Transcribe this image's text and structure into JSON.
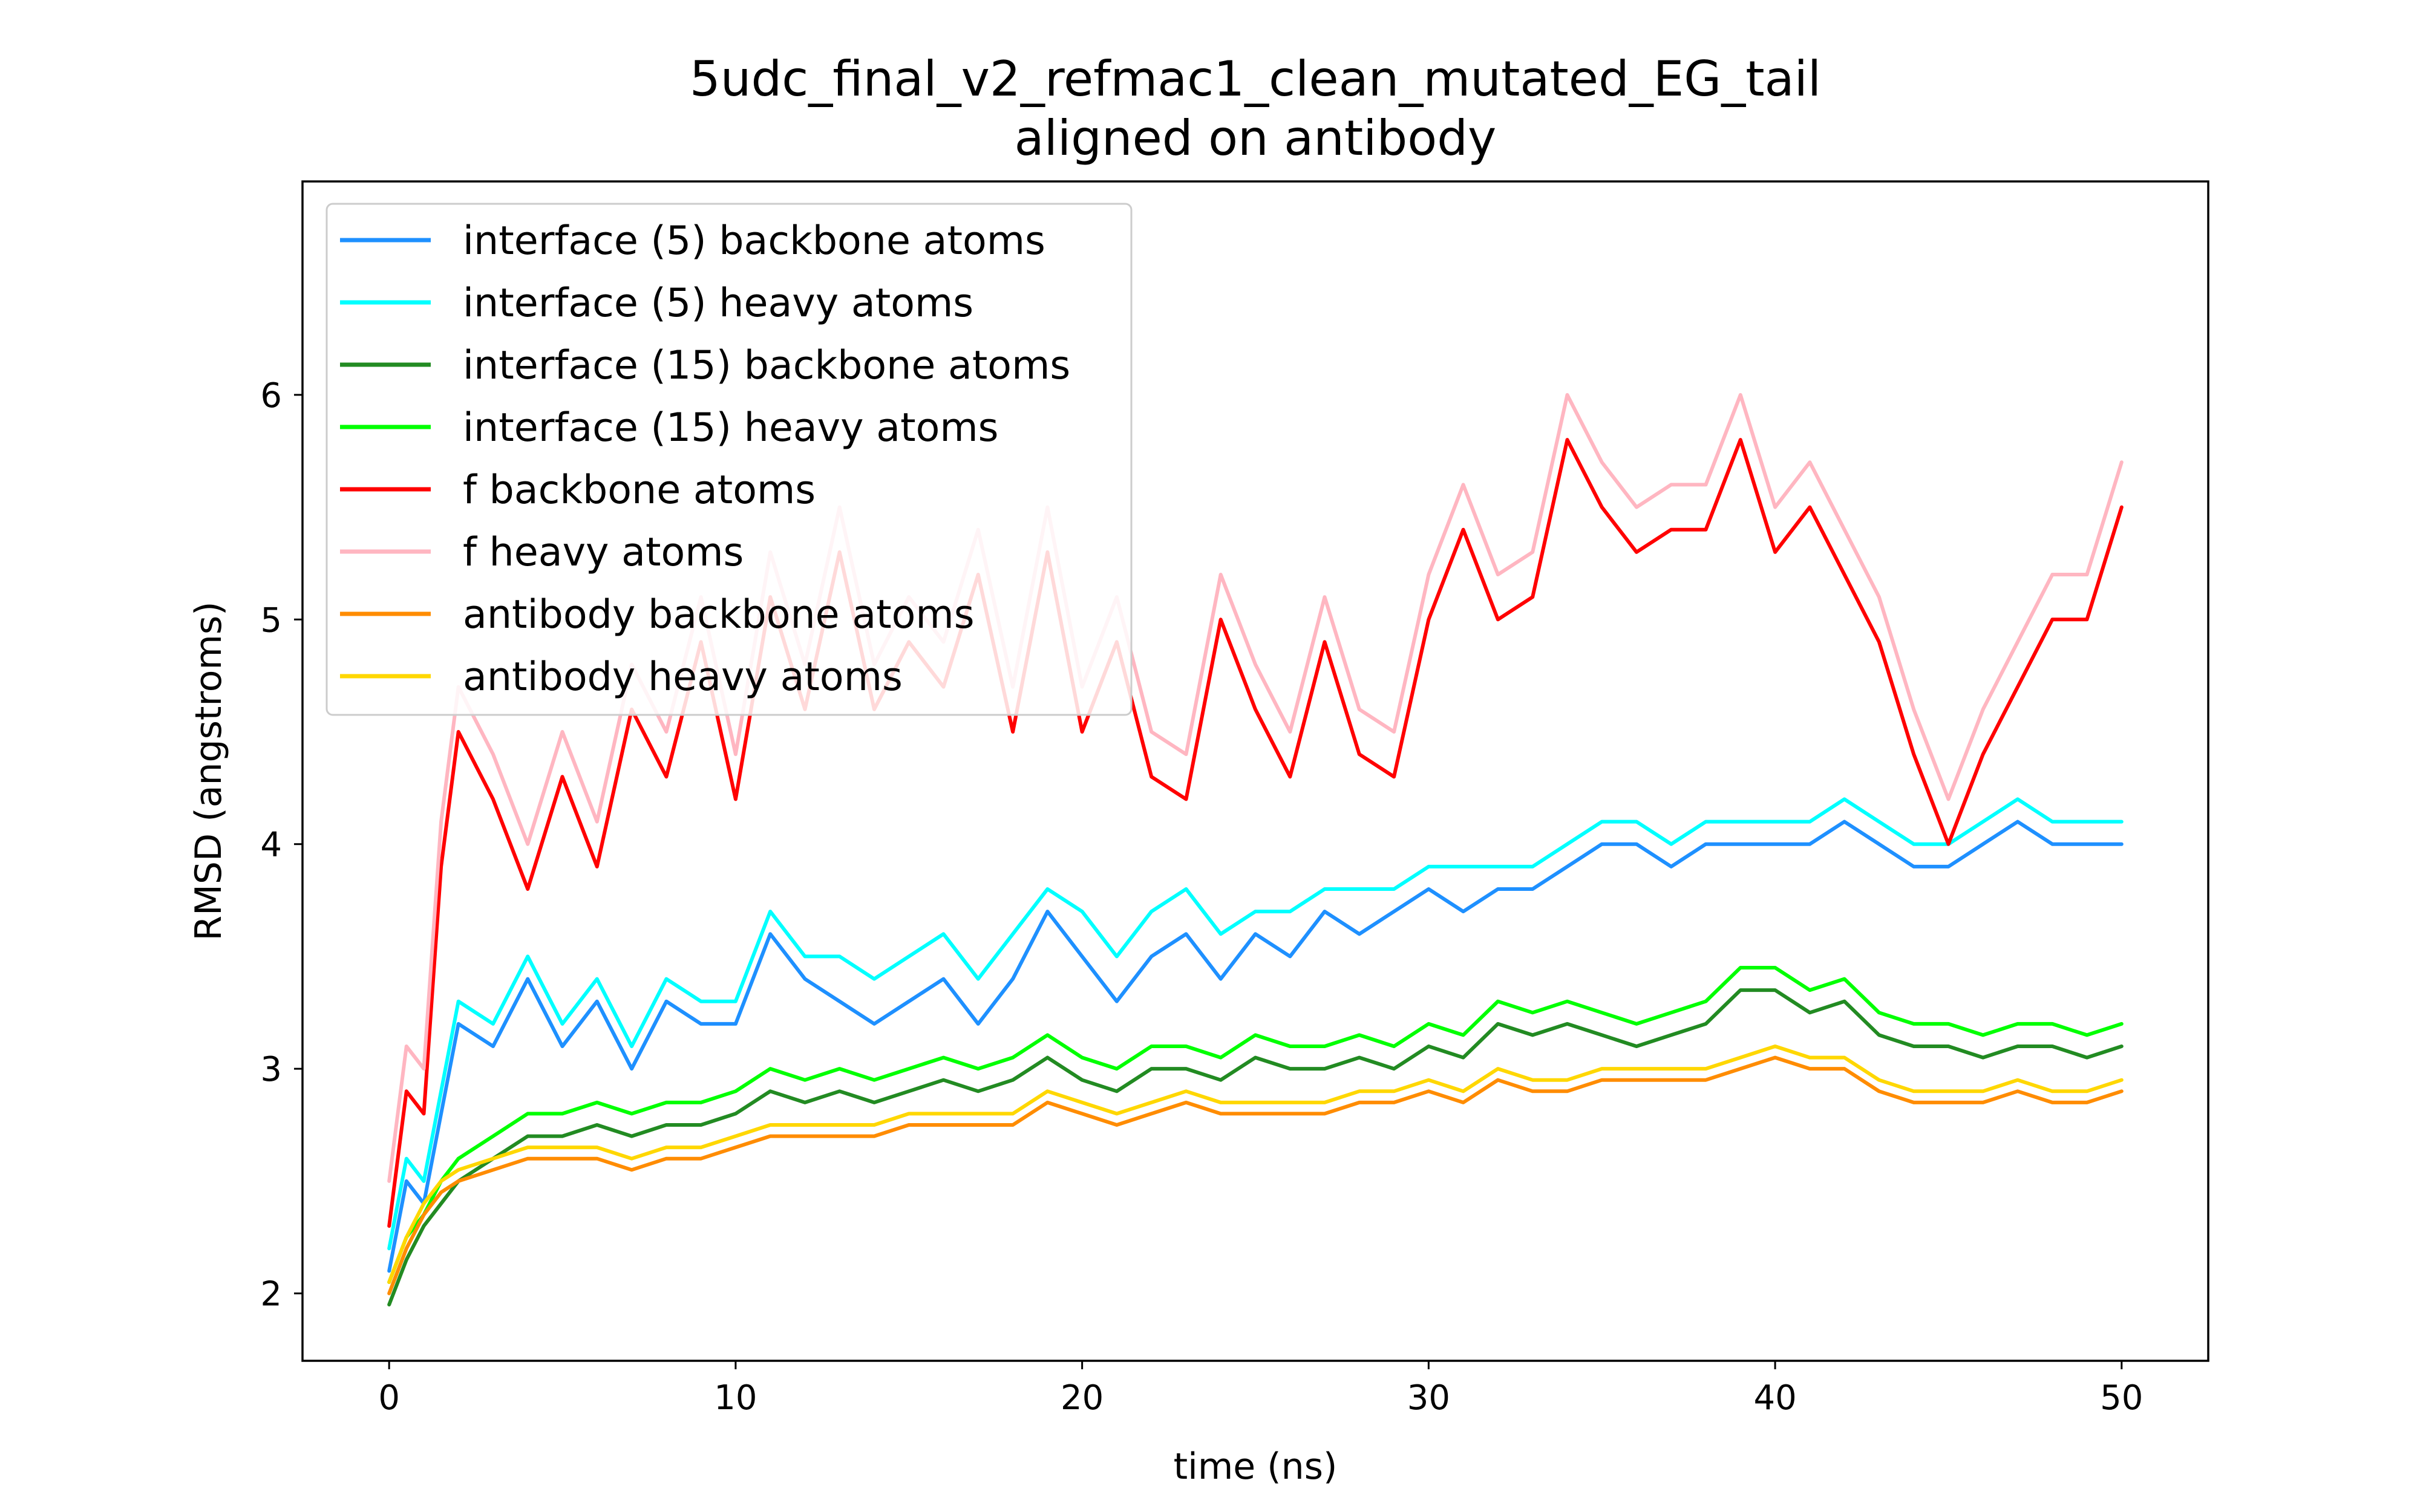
{
  "chart_data": {
    "type": "line",
    "title": "5udc_final_v2_refmac1_clean_mutated_EG_tail",
    "subtitle": "aligned on antibody",
    "xlabel": "time (ns)",
    "ylabel": "RMSD (angstroms)",
    "xlim": [
      -2.5,
      52.5
    ],
    "ylim": [
      1.7,
      6.95
    ],
    "xticks": [
      "0",
      "10",
      "20",
      "30",
      "40",
      "50"
    ],
    "yticks": [
      "2",
      "3",
      "4",
      "5",
      "6"
    ],
    "grid": false,
    "legend_position": "top-left",
    "x": [
      0,
      0.5,
      1,
      1.5,
      2,
      3,
      4,
      5,
      6,
      7,
      8,
      9,
      10,
      11,
      12,
      13,
      14,
      15,
      16,
      17,
      18,
      19,
      20,
      21,
      22,
      23,
      24,
      25,
      26,
      27,
      28,
      29,
      30,
      31,
      32,
      33,
      34,
      35,
      36,
      37,
      38,
      39,
      40,
      41,
      42,
      43,
      44,
      45,
      46,
      47,
      48,
      49,
      50
    ],
    "series": [
      {
        "name": "interface (5) backbone atoms",
        "color": "#1e90ff",
        "values": [
          2.1,
          2.5,
          2.4,
          2.8,
          3.2,
          3.1,
          3.4,
          3.1,
          3.3,
          3.0,
          3.3,
          3.2,
          3.2,
          3.6,
          3.4,
          3.3,
          3.2,
          3.3,
          3.4,
          3.2,
          3.4,
          3.7,
          3.5,
          3.3,
          3.5,
          3.6,
          3.4,
          3.6,
          3.5,
          3.7,
          3.6,
          3.7,
          3.8,
          3.7,
          3.8,
          3.8,
          3.9,
          4.0,
          4.0,
          3.9,
          4.0,
          4.0,
          4.0,
          4.0,
          4.1,
          4.0,
          3.9,
          3.9,
          4.0,
          4.1,
          4.0,
          4.0,
          4.0
        ]
      },
      {
        "name": "interface (5) heavy atoms",
        "color": "#00ffff",
        "values": [
          2.2,
          2.6,
          2.5,
          2.9,
          3.3,
          3.2,
          3.5,
          3.2,
          3.4,
          3.1,
          3.4,
          3.3,
          3.3,
          3.7,
          3.5,
          3.5,
          3.4,
          3.5,
          3.6,
          3.4,
          3.6,
          3.8,
          3.7,
          3.5,
          3.7,
          3.8,
          3.6,
          3.7,
          3.7,
          3.8,
          3.8,
          3.8,
          3.9,
          3.9,
          3.9,
          3.9,
          4.0,
          4.1,
          4.1,
          4.0,
          4.1,
          4.1,
          4.1,
          4.1,
          4.2,
          4.1,
          4.0,
          4.0,
          4.1,
          4.2,
          4.1,
          4.1,
          4.1
        ]
      },
      {
        "name": "interface (15) backbone atoms",
        "color": "#228b22",
        "values": [
          1.95,
          2.15,
          2.3,
          2.4,
          2.5,
          2.6,
          2.7,
          2.7,
          2.75,
          2.7,
          2.75,
          2.75,
          2.8,
          2.9,
          2.85,
          2.9,
          2.85,
          2.9,
          2.95,
          2.9,
          2.95,
          3.05,
          2.95,
          2.9,
          3.0,
          3.0,
          2.95,
          3.05,
          3.0,
          3.0,
          3.05,
          3.0,
          3.1,
          3.05,
          3.2,
          3.15,
          3.2,
          3.15,
          3.1,
          3.15,
          3.2,
          3.35,
          3.35,
          3.25,
          3.3,
          3.15,
          3.1,
          3.1,
          3.05,
          3.1,
          3.1,
          3.05,
          3.1
        ]
      },
      {
        "name": "interface (15) heavy atoms",
        "color": "#00ff00",
        "values": [
          2.05,
          2.25,
          2.35,
          2.5,
          2.6,
          2.7,
          2.8,
          2.8,
          2.85,
          2.8,
          2.85,
          2.85,
          2.9,
          3.0,
          2.95,
          3.0,
          2.95,
          3.0,
          3.05,
          3.0,
          3.05,
          3.15,
          3.05,
          3.0,
          3.1,
          3.1,
          3.05,
          3.15,
          3.1,
          3.1,
          3.15,
          3.1,
          3.2,
          3.15,
          3.3,
          3.25,
          3.3,
          3.25,
          3.2,
          3.25,
          3.3,
          3.45,
          3.45,
          3.35,
          3.4,
          3.25,
          3.2,
          3.2,
          3.15,
          3.2,
          3.2,
          3.15,
          3.2
        ]
      },
      {
        "name": "f backbone atoms",
        "color": "#ff0000",
        "values": [
          2.3,
          2.9,
          2.8,
          3.9,
          4.5,
          4.2,
          3.8,
          4.3,
          3.9,
          4.6,
          4.3,
          4.9,
          4.2,
          5.1,
          4.6,
          5.3,
          4.6,
          4.9,
          4.7,
          5.2,
          4.5,
          5.3,
          4.5,
          4.9,
          4.3,
          4.2,
          5.0,
          4.6,
          4.3,
          4.9,
          4.4,
          4.3,
          5.0,
          5.4,
          5.0,
          5.1,
          5.8,
          5.5,
          5.3,
          5.4,
          5.4,
          5.8,
          5.3,
          5.5,
          5.2,
          4.9,
          4.4,
          4.0,
          4.4,
          4.7,
          5.0,
          5.0,
          5.5
        ]
      },
      {
        "name": "f heavy atoms",
        "color": "#ffb6c1",
        "values": [
          2.5,
          3.1,
          3.0,
          4.1,
          4.7,
          4.4,
          4.0,
          4.5,
          4.1,
          4.8,
          4.5,
          5.1,
          4.4,
          5.3,
          4.8,
          5.5,
          4.8,
          5.1,
          4.9,
          5.4,
          4.7,
          5.5,
          4.7,
          5.1,
          4.5,
          4.4,
          5.2,
          4.8,
          4.5,
          5.1,
          4.6,
          4.5,
          5.2,
          5.6,
          5.2,
          5.3,
          6.0,
          5.7,
          5.5,
          5.6,
          5.6,
          6.0,
          5.5,
          5.7,
          5.4,
          5.1,
          4.6,
          4.2,
          4.6,
          4.9,
          5.2,
          5.2,
          5.7
        ]
      },
      {
        "name": "antibody backbone atoms",
        "color": "#ff8c00",
        "values": [
          2.0,
          2.2,
          2.35,
          2.45,
          2.5,
          2.55,
          2.6,
          2.6,
          2.6,
          2.55,
          2.6,
          2.6,
          2.65,
          2.7,
          2.7,
          2.7,
          2.7,
          2.75,
          2.75,
          2.75,
          2.75,
          2.85,
          2.8,
          2.75,
          2.8,
          2.85,
          2.8,
          2.8,
          2.8,
          2.8,
          2.85,
          2.85,
          2.9,
          2.85,
          2.95,
          2.9,
          2.9,
          2.95,
          2.95,
          2.95,
          2.95,
          3.0,
          3.05,
          3.0,
          3.0,
          2.9,
          2.85,
          2.85,
          2.85,
          2.9,
          2.85,
          2.85,
          2.9
        ]
      },
      {
        "name": "antibody heavy atoms",
        "color": "#ffd700",
        "values": [
          2.05,
          2.25,
          2.4,
          2.5,
          2.55,
          2.6,
          2.65,
          2.65,
          2.65,
          2.6,
          2.65,
          2.65,
          2.7,
          2.75,
          2.75,
          2.75,
          2.75,
          2.8,
          2.8,
          2.8,
          2.8,
          2.9,
          2.85,
          2.8,
          2.85,
          2.9,
          2.85,
          2.85,
          2.85,
          2.85,
          2.9,
          2.9,
          2.95,
          2.9,
          3.0,
          2.95,
          2.95,
          3.0,
          3.0,
          3.0,
          3.0,
          3.05,
          3.1,
          3.05,
          3.05,
          2.95,
          2.9,
          2.9,
          2.9,
          2.95,
          2.9,
          2.9,
          2.95
        ]
      }
    ]
  }
}
